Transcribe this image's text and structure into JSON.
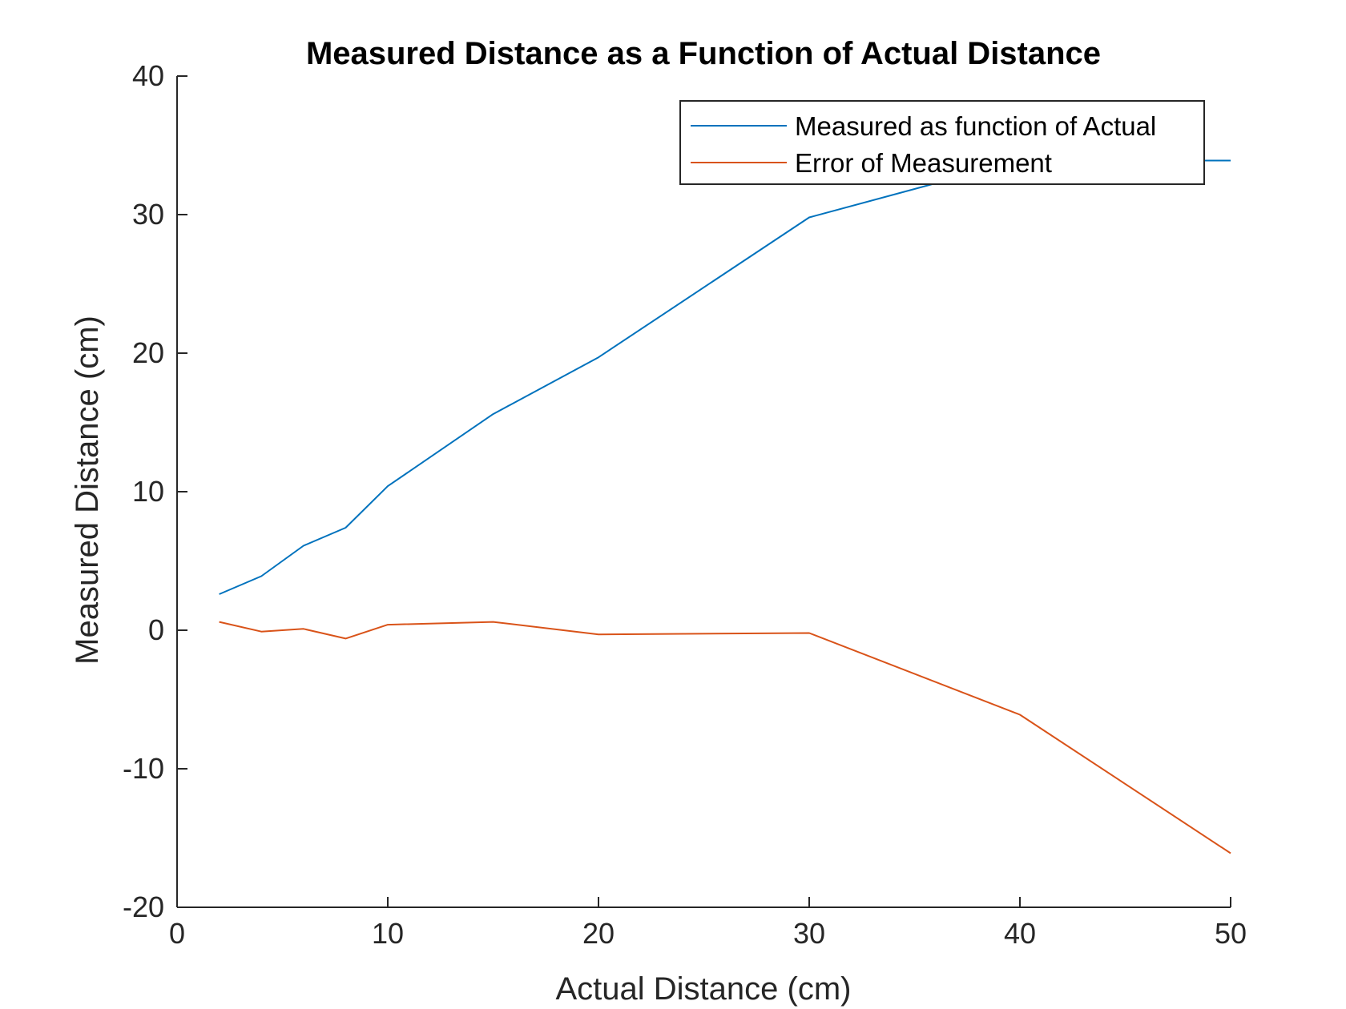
{
  "chart_data": {
    "type": "line",
    "title": "Measured Distance as a Function of Actual Distance",
    "xlabel": "Actual Distance (cm)",
    "ylabel": "Measured Distance (cm)",
    "xlim": [
      0,
      50
    ],
    "ylim": [
      -20,
      40
    ],
    "x_ticks": [
      0,
      10,
      20,
      30,
      40,
      50
    ],
    "y_ticks": [
      -20,
      -10,
      0,
      10,
      20,
      30,
      40
    ],
    "grid": false,
    "legend_position": "top-right",
    "series": [
      {
        "name": "Measured as function of Actual",
        "color": "#0072BD",
        "x": [
          2,
          4,
          6,
          8,
          10,
          15,
          20,
          30,
          40,
          50
        ],
        "y": [
          2.6,
          3.9,
          6.1,
          7.4,
          10.4,
          15.6,
          19.7,
          29.8,
          33.9,
          33.9
        ]
      },
      {
        "name": "Error of Measurement",
        "color": "#D95319",
        "x": [
          2,
          4,
          6,
          8,
          10,
          15,
          20,
          30,
          40,
          50
        ],
        "y": [
          0.6,
          -0.1,
          0.1,
          -0.6,
          0.4,
          0.6,
          -0.3,
          -0.2,
          -6.1,
          -16.1
        ]
      }
    ]
  }
}
